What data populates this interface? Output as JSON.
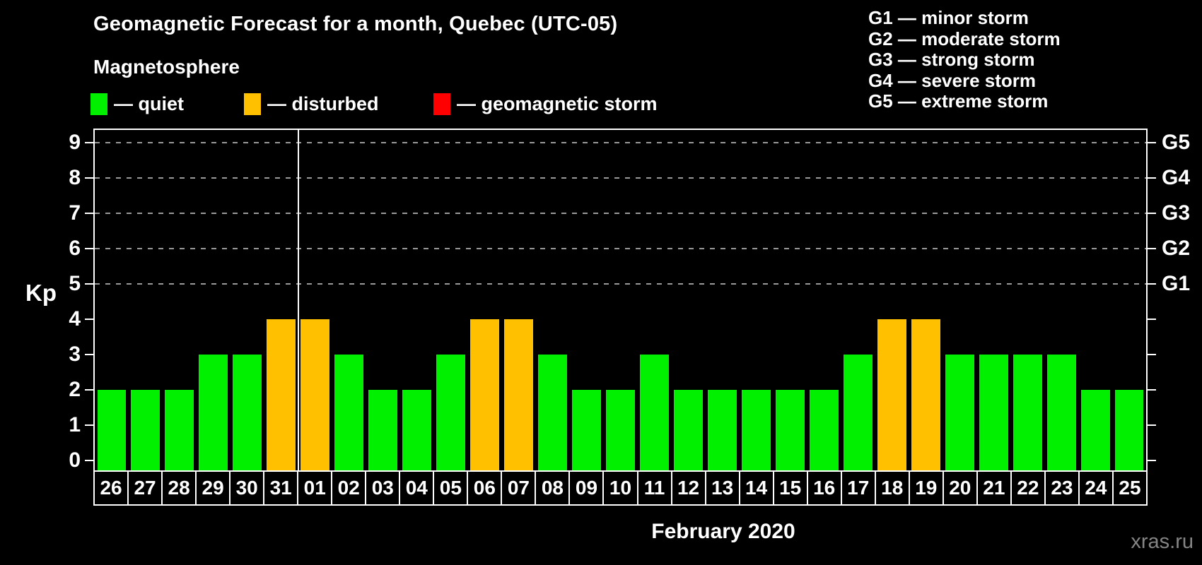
{
  "title": "Geomagnetic Forecast for a month, Quebec (UTC-05)",
  "subtitle": "Magnetosphere",
  "legend": {
    "items": [
      {
        "name": "quiet",
        "label": "— quiet",
        "color": "#00F000"
      },
      {
        "name": "disturbed",
        "label": "— disturbed",
        "color": "#FFC000"
      },
      {
        "name": "storm",
        "label": "— geomagnetic storm",
        "color": "#FF0000"
      }
    ]
  },
  "g_legend": [
    "G1 — minor storm",
    "G2 — moderate storm",
    "G3 — strong storm",
    "G4 — severe storm",
    "G5 — extreme storm"
  ],
  "footer": {
    "month_label": "February 2020",
    "watermark": "xras.ru"
  },
  "chart_data": {
    "type": "bar",
    "title": "Geomagnetic Forecast for a month, Quebec (UTC-05)",
    "xlabel": "February 2020",
    "ylabel": "Kp",
    "ylim": [
      0,
      9
    ],
    "y_ticks": [
      0,
      1,
      2,
      3,
      4,
      5,
      6,
      7,
      8,
      9
    ],
    "grid": "horizontal-dashed",
    "gridlines_kp": [
      5,
      6,
      7,
      8,
      9
    ],
    "legend_position": "top-left",
    "categories": [
      "26",
      "27",
      "28",
      "29",
      "30",
      "31",
      "01",
      "02",
      "03",
      "04",
      "05",
      "06",
      "07",
      "08",
      "09",
      "10",
      "11",
      "12",
      "13",
      "14",
      "15",
      "16",
      "17",
      "18",
      "19",
      "20",
      "21",
      "22",
      "23",
      "24",
      "25"
    ],
    "values": [
      2,
      2,
      2,
      3,
      3,
      4,
      4,
      3,
      2,
      2,
      3,
      4,
      4,
      3,
      2,
      2,
      3,
      2,
      2,
      2,
      2,
      2,
      3,
      4,
      4,
      3,
      3,
      3,
      3,
      2,
      2
    ],
    "status": [
      "quiet",
      "quiet",
      "quiet",
      "quiet",
      "quiet",
      "disturbed",
      "disturbed",
      "quiet",
      "quiet",
      "quiet",
      "quiet",
      "disturbed",
      "disturbed",
      "quiet",
      "quiet",
      "quiet",
      "quiet",
      "quiet",
      "quiet",
      "quiet",
      "quiet",
      "quiet",
      "quiet",
      "disturbed",
      "disturbed",
      "quiet",
      "quiet",
      "quiet",
      "quiet",
      "quiet",
      "quiet"
    ],
    "colors": {
      "quiet": "#00F000",
      "disturbed": "#FFC000",
      "storm": "#FF0000"
    },
    "right_axis_labels": [
      "G1",
      "G2",
      "G3",
      "G4",
      "G5"
    ],
    "right_axis_kp_levels": [
      5,
      6,
      7,
      8,
      9
    ],
    "month_boundary_after": "31"
  }
}
